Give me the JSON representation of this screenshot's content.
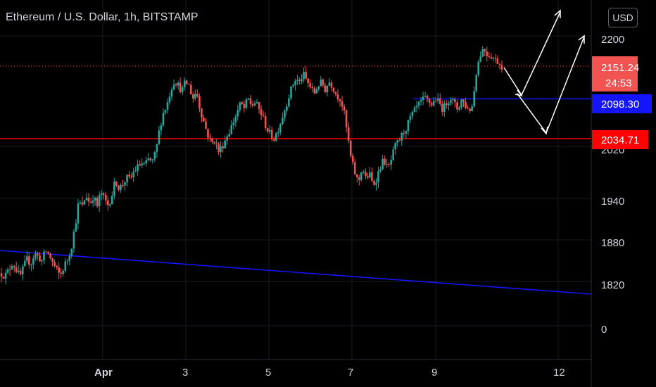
{
  "header": {
    "title": "Ethereum / U.S. Dollar, 1h, BITSTAMP",
    "currency_button": "USD"
  },
  "colors": {
    "background": "#000000",
    "candle_up": "#26a69a",
    "candle_down": "#ef5350",
    "support_line": "#ff0000",
    "blue_line": "#1414ff",
    "price_label": "#f05350",
    "arrow": "#ffffff"
  },
  "chart_data": {
    "type": "candlestick",
    "y_axis": {
      "ticks": [
        "2200",
        "2020",
        "1940",
        "1880",
        "1820",
        "0"
      ],
      "tick_values": [
        2200,
        2020,
        1940,
        1880,
        1820,
        0
      ]
    },
    "x_axis": {
      "ticks": [
        "Apr",
        "3",
        "5",
        "7",
        "9",
        "12"
      ]
    },
    "price_labels": [
      {
        "name": "current-price",
        "value": "2151.24",
        "countdown": "24:53"
      },
      {
        "name": "resistance",
        "value": "2098.30"
      },
      {
        "name": "support",
        "value": "2034.71"
      }
    ],
    "candle_path": [
      1832,
      1828,
      1836,
      1848,
      1838,
      1826,
      1840,
      1852,
      1846,
      1860,
      1856,
      1850,
      1864,
      1858,
      1846,
      1836,
      1828,
      1842,
      1852,
      1870,
      1900,
      1935,
      1928,
      1946,
      1932,
      1944,
      1928,
      1950,
      1938,
      1930,
      1945,
      1968,
      1955,
      1962,
      1972,
      1968,
      1982,
      1988,
      1994,
      1990,
      2000,
      1996,
      2012,
      2050,
      2075,
      2088,
      2112,
      2128,
      2120,
      2110,
      2125,
      2118,
      2098,
      2110,
      2080,
      2060,
      2040,
      2025,
      2030,
      2012,
      2020,
      2034,
      2045,
      2060,
      2075,
      2090,
      2082,
      2098,
      2086,
      2092,
      2080,
      2068,
      2050,
      2040,
      2032,
      2045,
      2062,
      2080,
      2100,
      2118,
      2130,
      2124,
      2138,
      2126,
      2116,
      2106,
      2120,
      2124,
      2112,
      2126,
      2118,
      2104,
      2098,
      2080,
      2040,
      2000,
      1980,
      1964,
      1988,
      1970,
      1978,
      1960,
      1972,
      1990,
      2000,
      1984,
      2000,
      2020,
      2028,
      2040,
      2050,
      2065,
      2075,
      2085,
      2092,
      2098,
      2094,
      2088,
      2098,
      2090,
      2080,
      2092,
      2100,
      2090,
      2080,
      2096,
      2088,
      2078,
      2086,
      2140,
      2168,
      2180,
      2170,
      2168,
      2162,
      2158,
      2151
    ]
  }
}
